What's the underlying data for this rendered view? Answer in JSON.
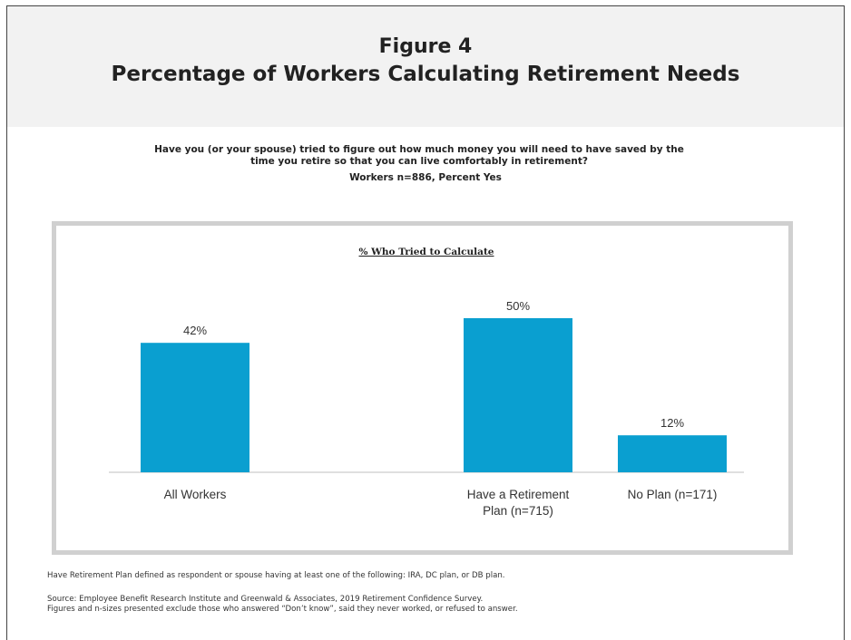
{
  "figure_label": "Figure 4",
  "figure_title": "Percentage of Workers Calculating Retirement Needs",
  "question_line1": "Have you (or your spouse) tried to figure out how much money you will need to have saved by the",
  "question_line2": "time you retire so that you can live comfortably in retirement?",
  "sample_note": "Workers n=886, Percent Yes",
  "colors": {
    "bar": "#0a9fd0",
    "header_bg": "#f2f2f2",
    "box_border": "#d0d0d0"
  },
  "chart_data": {
    "type": "bar",
    "title": "% Who Tried to Calculate",
    "categories": [
      "All Workers",
      "Have a Retirement Plan (n=715)",
      "No Plan (n=171)"
    ],
    "category_lines": [
      [
        "All Workers"
      ],
      [
        "Have a Retirement",
        "Plan (n=715)"
      ],
      [
        "No Plan (n=171)"
      ]
    ],
    "values": [
      42,
      50,
      12
    ],
    "value_labels": [
      "42%",
      "50%",
      "12%"
    ],
    "ylim": [
      0,
      60
    ],
    "xlabel": "",
    "ylabel": "",
    "grid": false,
    "legend": "none"
  },
  "footnote_plan": "Have Retirement Plan defined as respondent or spouse having at least one of the following: IRA, DC plan, or DB plan.",
  "footnote_source": "Source: Employee Benefit Research Institute and Greenwald & Associates, 2019 Retirement Confidence Survey.",
  "footnote_figures": "Figures and n-sizes presented exclude those who answered “Don’t know”, said they never worked, or refused to answer."
}
